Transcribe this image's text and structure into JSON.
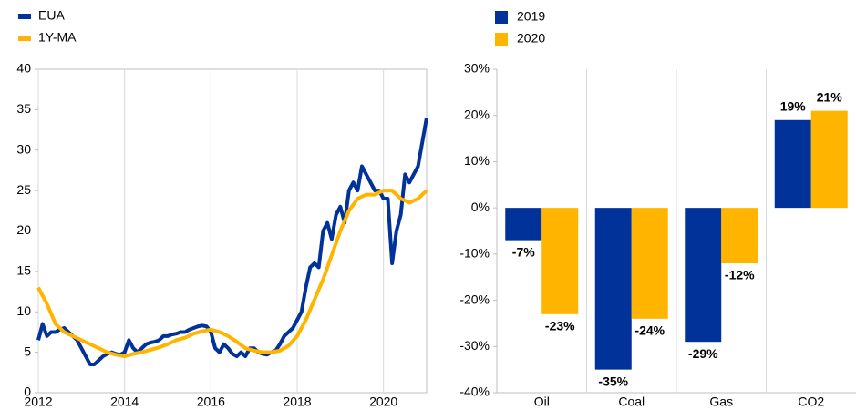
{
  "chart_data": [
    {
      "type": "line",
      "xlim": [
        2012,
        2021
      ],
      "xticks": [
        2012,
        2014,
        2016,
        2018,
        2020
      ],
      "ylim": [
        0,
        40
      ],
      "yticks": [
        0,
        5,
        10,
        15,
        20,
        25,
        30,
        35,
        40
      ],
      "grid": true,
      "legend": "top-left",
      "series": [
        {
          "name": "EUA",
          "color": "#003299",
          "x": [
            2012.0,
            2012.1,
            2012.2,
            2012.3,
            2012.4,
            2012.5,
            2012.6,
            2012.7,
            2012.8,
            2012.9,
            2013.0,
            2013.1,
            2013.2,
            2013.3,
            2013.4,
            2013.5,
            2013.6,
            2013.7,
            2013.8,
            2013.9,
            2014.0,
            2014.1,
            2014.2,
            2014.3,
            2014.4,
            2014.5,
            2014.6,
            2014.7,
            2014.8,
            2014.9,
            2015.0,
            2015.1,
            2015.2,
            2015.3,
            2015.4,
            2015.5,
            2015.6,
            2015.7,
            2015.8,
            2015.9,
            2016.0,
            2016.1,
            2016.2,
            2016.3,
            2016.4,
            2016.5,
            2016.6,
            2016.7,
            2016.8,
            2016.9,
            2017.0,
            2017.1,
            2017.2,
            2017.3,
            2017.4,
            2017.5,
            2017.6,
            2017.7,
            2017.8,
            2017.9,
            2018.0,
            2018.1,
            2018.2,
            2018.3,
            2018.4,
            2018.5,
            2018.6,
            2018.7,
            2018.8,
            2018.9,
            2019.0,
            2019.1,
            2019.2,
            2019.3,
            2019.4,
            2019.5,
            2019.6,
            2019.7,
            2019.8,
            2019.9,
            2020.0,
            2020.1,
            2020.2,
            2020.3,
            2020.4,
            2020.5,
            2020.6,
            2020.7,
            2020.8,
            2020.9,
            2021.0
          ],
          "values": [
            6.5,
            8.5,
            7,
            7.5,
            7.5,
            7.8,
            8,
            7.5,
            7,
            6.5,
            5.5,
            4.5,
            3.5,
            3.5,
            4,
            4.5,
            4.8,
            5,
            4.8,
            4.7,
            5,
            6.5,
            5.5,
            5,
            5.5,
            6,
            6.2,
            6.3,
            6.5,
            7,
            7,
            7.2,
            7.3,
            7.5,
            7.5,
            7.8,
            8,
            8.2,
            8.3,
            8.2,
            7.5,
            5.5,
            5,
            6,
            5.5,
            4.8,
            4.5,
            5,
            4.5,
            5.5,
            5.5,
            5,
            4.8,
            4.7,
            5,
            5.2,
            6,
            7,
            7.5,
            8,
            9,
            10,
            13,
            15.5,
            16,
            15.5,
            20,
            21,
            19,
            22,
            23,
            21,
            25,
            26,
            25,
            28,
            27,
            26,
            25,
            25,
            24,
            24,
            16,
            20,
            22,
            27,
            26,
            27,
            28,
            31,
            34
          ]
        },
        {
          "name": "1Y-MA",
          "color": "#FFB400",
          "x": [
            2012.0,
            2012.2,
            2012.4,
            2012.6,
            2012.8,
            2013.0,
            2013.2,
            2013.4,
            2013.6,
            2013.8,
            2014.0,
            2014.2,
            2014.4,
            2014.6,
            2014.8,
            2015.0,
            2015.2,
            2015.4,
            2015.6,
            2015.8,
            2016.0,
            2016.2,
            2016.4,
            2016.6,
            2016.8,
            2017.0,
            2017.2,
            2017.4,
            2017.6,
            2017.8,
            2018.0,
            2018.2,
            2018.4,
            2018.6,
            2018.8,
            2019.0,
            2019.2,
            2019.4,
            2019.6,
            2019.8,
            2020.0,
            2020.2,
            2020.4,
            2020.6,
            2020.8,
            2021.0
          ],
          "values": [
            13,
            11,
            8.5,
            7.5,
            7,
            6.5,
            6,
            5.5,
            5,
            4.7,
            4.5,
            4.8,
            5,
            5.3,
            5.6,
            6,
            6.5,
            6.8,
            7.3,
            7.6,
            7.8,
            7.5,
            7,
            6.3,
            5.5,
            5.2,
            5,
            5,
            5.2,
            5.8,
            7,
            9,
            11.5,
            14,
            17,
            20,
            22.5,
            24,
            24.5,
            24.5,
            25,
            25,
            24,
            23.5,
            24,
            25
          ]
        }
      ]
    },
    {
      "type": "bar",
      "categories": [
        "Oil",
        "Coal",
        "Gas",
        "CO2"
      ],
      "ylim": [
        -40,
        30
      ],
      "yticks": [
        {
          "value": -40,
          "label": "-40%"
        },
        {
          "value": -30,
          "label": "-30%"
        },
        {
          "value": -20,
          "label": "-20%"
        },
        {
          "value": -10,
          "label": "-10%"
        },
        {
          "value": 0,
          "label": "0%"
        },
        {
          "value": 10,
          "label": "10%"
        },
        {
          "value": 20,
          "label": "20%"
        },
        {
          "value": 30,
          "label": "30%"
        }
      ],
      "legend": "top-left",
      "series": [
        {
          "name": "2019",
          "color": "#003299",
          "values": [
            -7,
            -35,
            -29,
            19
          ],
          "value_labels": [
            "-7%",
            "-35%",
            "-29%",
            "19%"
          ]
        },
        {
          "name": "2020",
          "color": "#FFB400",
          "values": [
            -23,
            -24,
            -12,
            21
          ],
          "value_labels": [
            "-23%",
            "-24%",
            "-12%",
            "21%"
          ]
        }
      ]
    }
  ]
}
